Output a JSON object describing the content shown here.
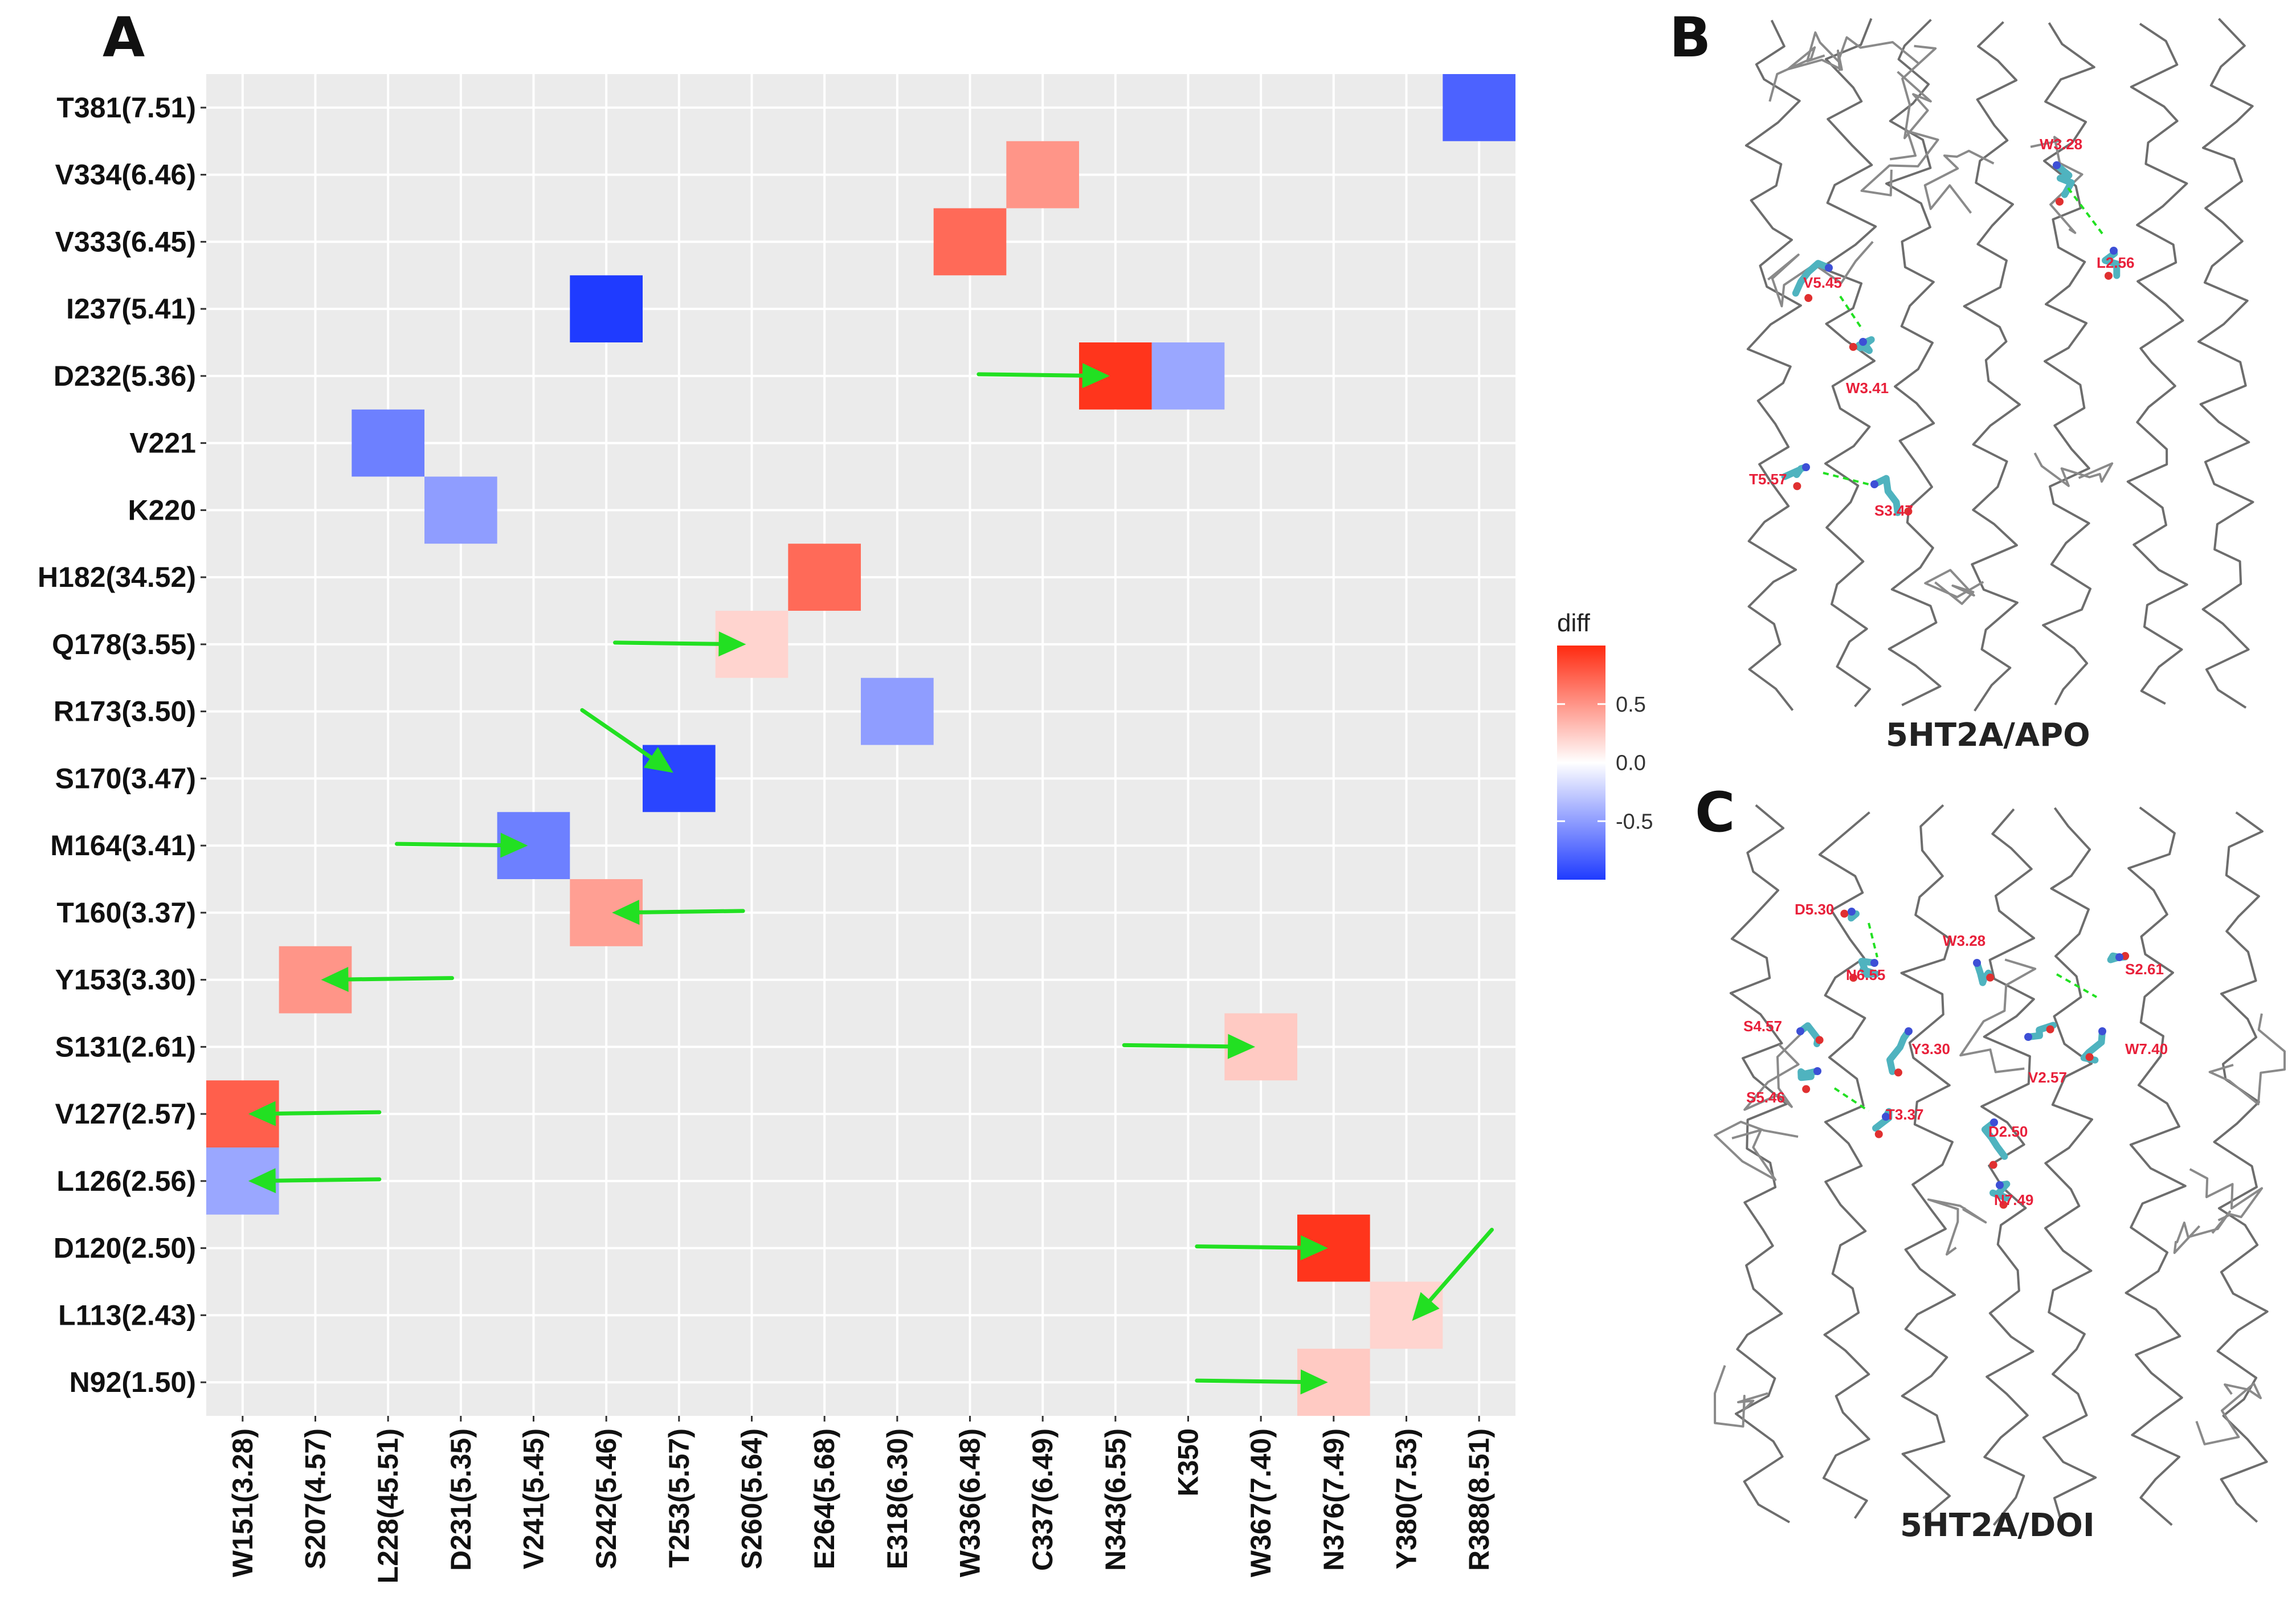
{
  "panels": {
    "a": "A",
    "b": "B",
    "c": "C"
  },
  "chart_data": {
    "type": "heatmap",
    "title": "",
    "xlabel": "",
    "ylabel": "",
    "x_categories": [
      "W151(3.28)",
      "S207(4.57)",
      "L228(45.51)",
      "D231(5.35)",
      "V241(5.45)",
      "S242(5.46)",
      "T253(5.57)",
      "S260(5.64)",
      "E264(5.68)",
      "E318(6.30)",
      "W336(6.48)",
      "C337(6.49)",
      "N343(6.55)",
      "K350",
      "W367(7.40)",
      "N376(7.49)",
      "Y380(7.53)",
      "R388(8.51)"
    ],
    "y_categories": [
      "T381(7.51)",
      "V334(6.46)",
      "V333(6.45)",
      "I237(5.41)",
      "D232(5.36)",
      "V221",
      "K220",
      "H182(34.52)",
      "Q178(3.55)",
      "R173(3.50)",
      "S170(3.47)",
      "M164(3.41)",
      "T160(3.37)",
      "Y153(3.30)",
      "S131(2.61)",
      "V127(2.57)",
      "L126(2.56)",
      "D120(2.50)",
      "L113(2.43)",
      "N92(1.50)"
    ],
    "cells": [
      {
        "x": "R388(8.51)",
        "y": "T381(7.51)",
        "value": -0.8
      },
      {
        "x": "C337(6.49)",
        "y": "V334(6.46)",
        "value": 0.5
      },
      {
        "x": "W336(6.48)",
        "y": "V333(6.45)",
        "value": 0.7
      },
      {
        "x": "S242(5.46)",
        "y": "I237(5.41)",
        "value": -1.0
      },
      {
        "x": "N343(6.55)",
        "y": "D232(5.36)",
        "value": 0.95
      },
      {
        "x": "K350",
        "y": "D232(5.36)",
        "value": -0.45
      },
      {
        "x": "L228(45.51)",
        "y": "V221",
        "value": -0.65
      },
      {
        "x": "D231(5.35)",
        "y": "K220",
        "value": -0.5
      },
      {
        "x": "E264(5.68)",
        "y": "H182(34.52)",
        "value": 0.7
      },
      {
        "x": "S260(5.64)",
        "y": "Q178(3.55)",
        "value": 0.2
      },
      {
        "x": "E318(6.30)",
        "y": "R173(3.50)",
        "value": -0.5
      },
      {
        "x": "T253(5.57)",
        "y": "S170(3.47)",
        "value": -0.95
      },
      {
        "x": "V241(5.45)",
        "y": "M164(3.41)",
        "value": -0.65
      },
      {
        "x": "S242(5.46)",
        "y": "T160(3.37)",
        "value": 0.45
      },
      {
        "x": "S207(4.57)",
        "y": "Y153(3.30)",
        "value": 0.5
      },
      {
        "x": "W367(7.40)",
        "y": "S131(2.61)",
        "value": 0.25
      },
      {
        "x": "W151(3.28)",
        "y": "V127(2.57)",
        "value": 0.75
      },
      {
        "x": "W151(3.28)",
        "y": "L126(2.56)",
        "value": -0.45
      },
      {
        "x": "N376(7.49)",
        "y": "D120(2.50)",
        "value": 0.95
      },
      {
        "x": "Y380(7.53)",
        "y": "L113(2.43)",
        "value": 0.2
      },
      {
        "x": "N376(7.49)",
        "y": "N92(1.50)",
        "value": 0.25
      }
    ],
    "arrows": [
      {
        "x": "N343(6.55)",
        "y": "D232(5.36)",
        "direction": "left-to-right"
      },
      {
        "x": "S260(5.64)",
        "y": "Q178(3.55)",
        "direction": "left-to-right"
      },
      {
        "x": "T253(5.57)",
        "y": "S170(3.47)",
        "direction": "diagonal-down-right"
      },
      {
        "x": "V241(5.45)",
        "y": "M164(3.41)",
        "direction": "left-to-right"
      },
      {
        "x": "S242(5.46)",
        "y": "T160(3.37)",
        "direction": "right-to-left"
      },
      {
        "x": "S207(4.57)",
        "y": "Y153(3.30)",
        "direction": "right-to-left"
      },
      {
        "x": "W367(7.40)",
        "y": "S131(2.61)",
        "direction": "left-to-right"
      },
      {
        "x": "W151(3.28)",
        "y": "V127(2.57)",
        "direction": "right-to-left"
      },
      {
        "x": "W151(3.28)",
        "y": "L126(2.56)",
        "direction": "right-to-left"
      },
      {
        "x": "N376(7.49)",
        "y": "D120(2.50)",
        "direction": "left-to-right"
      },
      {
        "x": "Y380(7.53)",
        "y": "L113(2.43)",
        "direction": "diagonal-down-left"
      },
      {
        "x": "N376(7.49)",
        "y": "N92(1.50)",
        "direction": "left-to-right"
      }
    ],
    "legend": {
      "title": "diff",
      "ticks": [
        {
          "value": 0.5,
          "label": "0.5"
        },
        {
          "value": 0.0,
          "label": "0.0"
        },
        {
          "value": -0.5,
          "label": "-0.5"
        }
      ],
      "range": [
        -1.0,
        1.0
      ],
      "placement": "right"
    },
    "colors": {
      "low": "#1f3bff",
      "mid": "#ffffff",
      "high": "#ff2a10",
      "arrow": "#22e022",
      "panel_bg": "#ebebeb",
      "grid": "#ffffff"
    }
  },
  "structures": [
    {
      "id": "apo",
      "title": "5HT2A/APO",
      "residues": [
        "W3.28",
        "L2.56",
        "V5.45",
        "W3.41",
        "T5.57",
        "S3.47"
      ]
    },
    {
      "id": "doi",
      "title": "5HT2A/DOI",
      "residues": [
        "D5.30",
        "N6.55",
        "W3.28",
        "S2.61",
        "S4.57",
        "Y3.30",
        "V2.57",
        "W7.40",
        "S5.46",
        "T3.37",
        "D2.50",
        "N7.49"
      ]
    }
  ]
}
